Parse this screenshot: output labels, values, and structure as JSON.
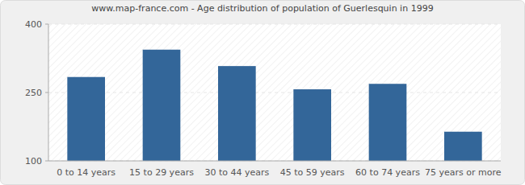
{
  "chart_data": {
    "type": "bar",
    "title": "www.map-france.com - Age distribution of population of Guerlesquin in 1999",
    "categories": [
      "0 to 14 years",
      "15 to 29 years",
      "30 to 44 years",
      "45 to 59 years",
      "60 to 74 years",
      "75 years or more"
    ],
    "values": [
      284,
      344,
      308,
      257,
      269,
      164
    ],
    "color": "#336699",
    "ylim": [
      100,
      400
    ],
    "yticks": [
      100,
      250,
      400
    ],
    "grid": true
  }
}
